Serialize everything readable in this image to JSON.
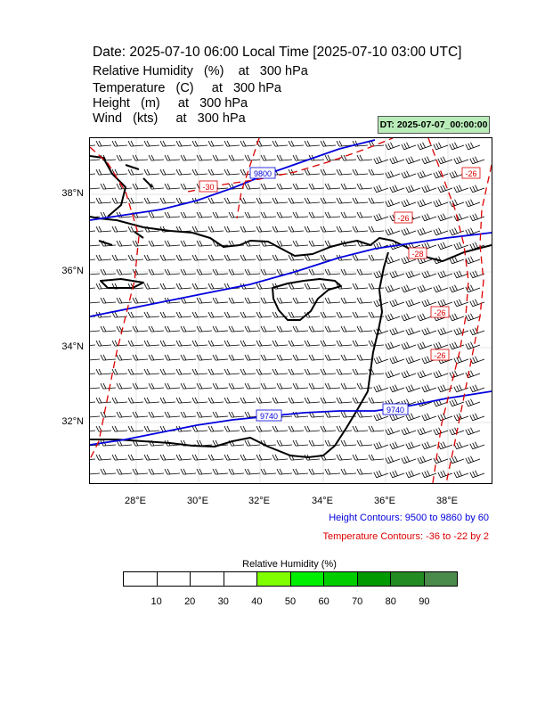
{
  "title": "Date: 2025-07-10  06:00 Local Time [2025-07-10  03:00 UTC]",
  "variables": [
    {
      "name": "Relative Humidity",
      "unit": "(%)",
      "level_text": "at   300 hPa"
    },
    {
      "name": "Temperature",
      "unit": "(C)",
      "level_text": "at   300 hPa"
    },
    {
      "name": "Height",
      "unit": "(m)",
      "level_text": "at   300 hPa"
    },
    {
      "name": "Wind",
      "unit": "(kts)",
      "level_text": "at   300 hPa"
    }
  ],
  "dt_badge": "DT: 2025-07-07_00:00:00",
  "map": {
    "latitudes": [
      "38°N",
      "36°N",
      "34°N",
      "32°N"
    ],
    "longitudes": [
      "28°E",
      "30°E",
      "32°E",
      "34°E",
      "36°E",
      "38°E"
    ],
    "height_contour_labels": [
      "9800",
      "9740",
      "9740"
    ],
    "temperature_contour_labels": [
      "-30",
      "-26",
      "-28",
      "-26",
      "-26",
      "-26"
    ]
  },
  "legend": {
    "height_contours": "Height Contours: 9500 to 9860 by 60",
    "temperature_contours": "Temperature Contours: -36 to -22 by 2",
    "height_color": "#0000dd",
    "temperature_color": "#dd0000"
  },
  "colorbar": {
    "title": "Relative Humidity  (%)",
    "labels": [
      "10",
      "20",
      "30",
      "40",
      "50",
      "60",
      "70",
      "80",
      "90"
    ],
    "colors": [
      "#ffffff",
      "#ffffff",
      "#ffffff",
      "#ffffff",
      "#7fff00",
      "#00ee00",
      "#00cd00",
      "#009900",
      "#228b22",
      "#4a8a4a"
    ]
  }
}
